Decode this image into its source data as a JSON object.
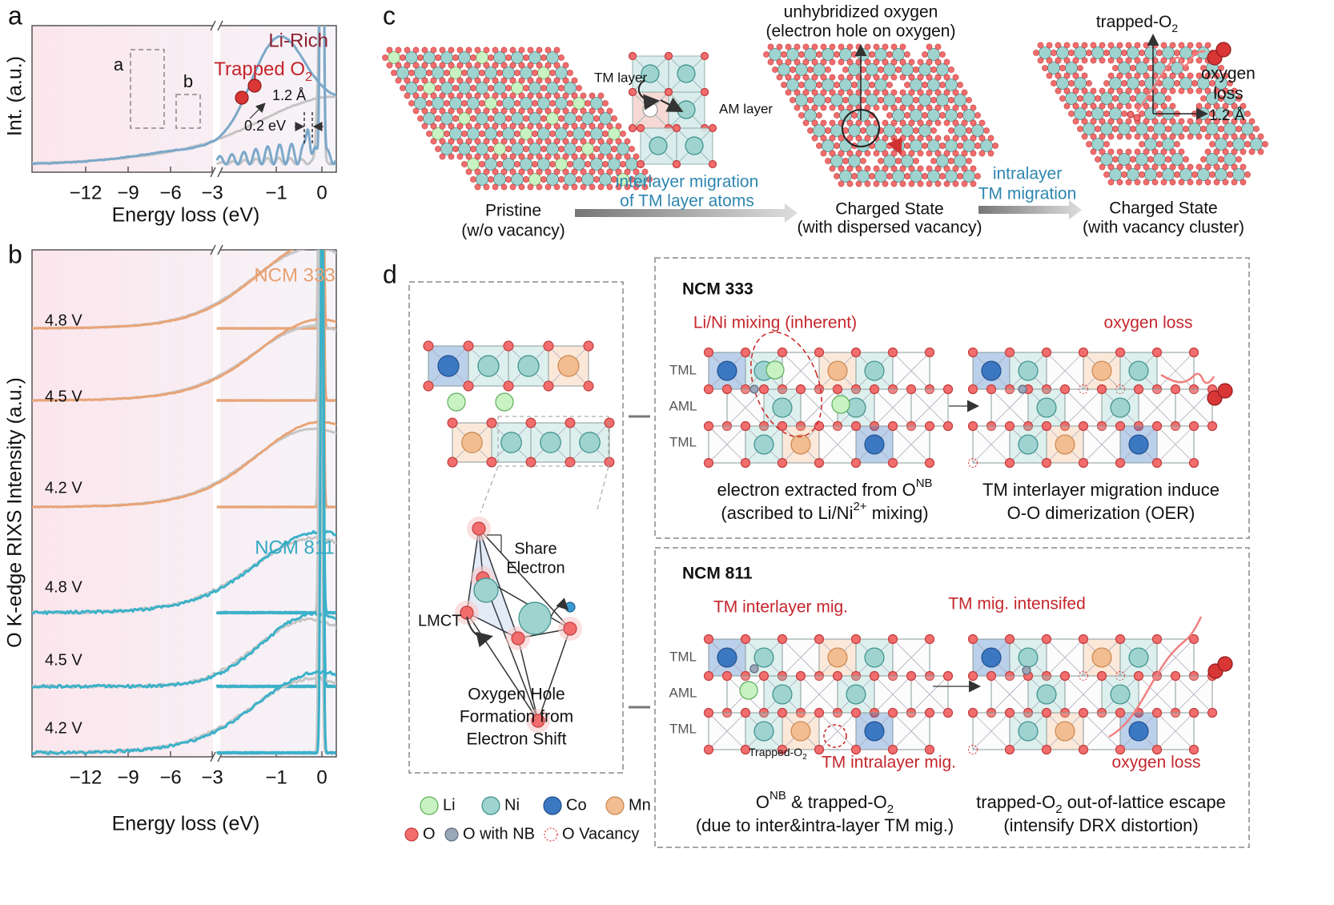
{
  "panel_labels": [
    "a",
    "b",
    "c",
    "d"
  ],
  "panel_a": {
    "y_axis_label": "Int. (a.u.)",
    "x_axis_label": "Energy loss (eV)",
    "xticks": [
      "−12",
      "−9",
      "−6",
      "−3",
      "−1",
      "0"
    ],
    "sample": "Li-Rich",
    "trapped": [
      {
        "text": "Trapped O"
      },
      {
        "sub": "2"
      }
    ],
    "box_a": "a",
    "box_b": "b",
    "bond_length": "1.2  Å",
    "energy_shift": "0.2 eV"
  },
  "panel_b": {
    "y_axis_label": "O K-edge RIXS Intensity (a.u.)",
    "x_axis_label": "Energy loss (eV)",
    "xticks": [
      "−12",
      "−9",
      "−6",
      "−3",
      "−1",
      "0"
    ],
    "samples": [
      {
        "name": "NCM 333",
        "voltages": [
          "4.8 V",
          "4.5 V",
          "4.2 V"
        ]
      },
      {
        "name": "NCM 811",
        "voltages": [
          "4.8 V",
          "4.5 V",
          "4.2 V"
        ]
      }
    ]
  },
  "panel_c": {
    "tm_layer": "TM layer",
    "am_layer": "AM layer",
    "step1": [
      "interlayer migration",
      "of TM layer atoms"
    ],
    "pristine": [
      "Pristine",
      "(w/o vacancy)"
    ],
    "hole_note": [
      "unhybridized oxygen",
      "(electron hole on oxygen)"
    ],
    "dispersed": [
      "Charged State",
      "(with dispersed vacancy)"
    ],
    "step2": [
      "intralayer",
      "TM migration"
    ],
    "trapped": [
      {
        "text": "trapped-O"
      },
      {
        "sub": "2"
      }
    ],
    "oxygen_loss": [
      "oxygen",
      "loss"
    ],
    "bond_length": "1.2 Å",
    "cluster": [
      "Charged State",
      "(with vacancy cluster)"
    ]
  },
  "panel_d": {
    "share_electron": [
      "Share",
      "Electron"
    ],
    "lmct": "LMCT",
    "hole_caption": [
      "Oxygen Hole",
      "Formation from",
      "Electron Shift"
    ],
    "ncm333": {
      "title": "NCM 333",
      "note_left": "Li/Ni mixing (inherent)",
      "note_right": "oxygen loss",
      "layers": [
        "TML",
        "AML",
        "TML"
      ],
      "caption_left": [
        [
          {
            "text": "electron extracted from O"
          },
          {
            "sup": "NB"
          }
        ],
        [
          {
            "text": "(ascribed to Li/Ni"
          },
          {
            "sup": "2+"
          },
          {
            "text": " mixing)"
          }
        ]
      ],
      "caption_right": [
        "TM interlayer migration induce",
        "O-O dimerization (OER)"
      ]
    },
    "ncm811": {
      "title": "NCM 811",
      "note_left": "TM interlayer mig.",
      "note_right": "TM mig. intensifed",
      "layers": [
        "TML",
        "AML",
        "TML"
      ],
      "trapped": [
        {
          "text": "Trapped-O"
        },
        {
          "sub": "2"
        }
      ],
      "note_intra": "TM intralayer mig.",
      "note_loss": "oxygen loss",
      "caption_left": [
        [
          {
            "text": "O"
          },
          {
            "sup": "NB"
          },
          {
            "text": " & trapped-O"
          },
          {
            "sub": "2"
          }
        ],
        [
          {
            "text": "(due to inter&intra-layer TM mig.)"
          }
        ]
      ],
      "caption_right": [
        [
          {
            "text": "trapped-O"
          },
          {
            "sub": "2"
          },
          {
            "text": " out-of-lattice escape"
          }
        ],
        [
          {
            "text": "(intensify DRX distortion)"
          }
        ]
      ]
    },
    "legend": [
      "Li",
      "Ni",
      "Co",
      "Mn",
      "O",
      "O with NB",
      "O Vacancy"
    ]
  }
}
